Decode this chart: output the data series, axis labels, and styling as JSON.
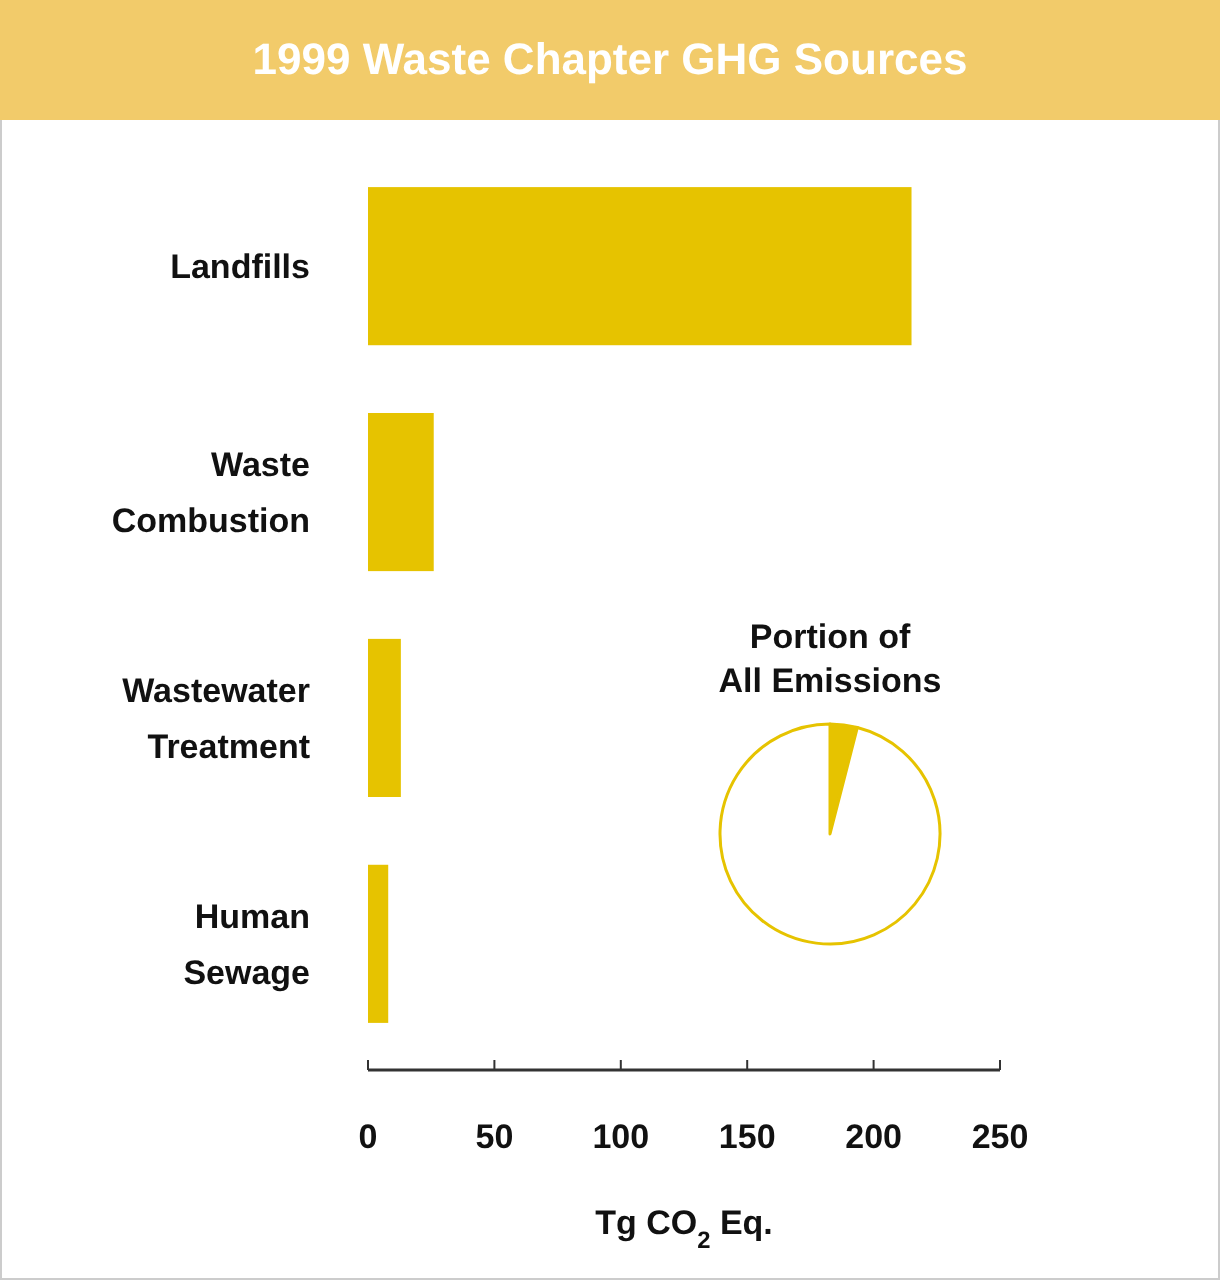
{
  "chart_data": [
    {
      "type": "bar",
      "title": "1999 Waste Chapter GHG Sources",
      "orientation": "horizontal",
      "categories": [
        "Landfills",
        "Waste Combustion",
        "Wastewater Treatment",
        "Human Sewage"
      ],
      "values": [
        215,
        26,
        13,
        8
      ],
      "color": "#e6c300",
      "xlim": [
        0,
        250
      ],
      "xticks": [
        0,
        50,
        100,
        150,
        200,
        250
      ],
      "xlabel": "Tg CO$_{2}$ Eq.",
      "grid": false
    },
    {
      "type": "pie",
      "title": "Portion of All Emissions",
      "categories": [
        null,
        null
      ],
      "values": [
        4,
        96
      ],
      "colors": [
        "#e6c300",
        "#ffffff"
      ]
    }
  ]
}
